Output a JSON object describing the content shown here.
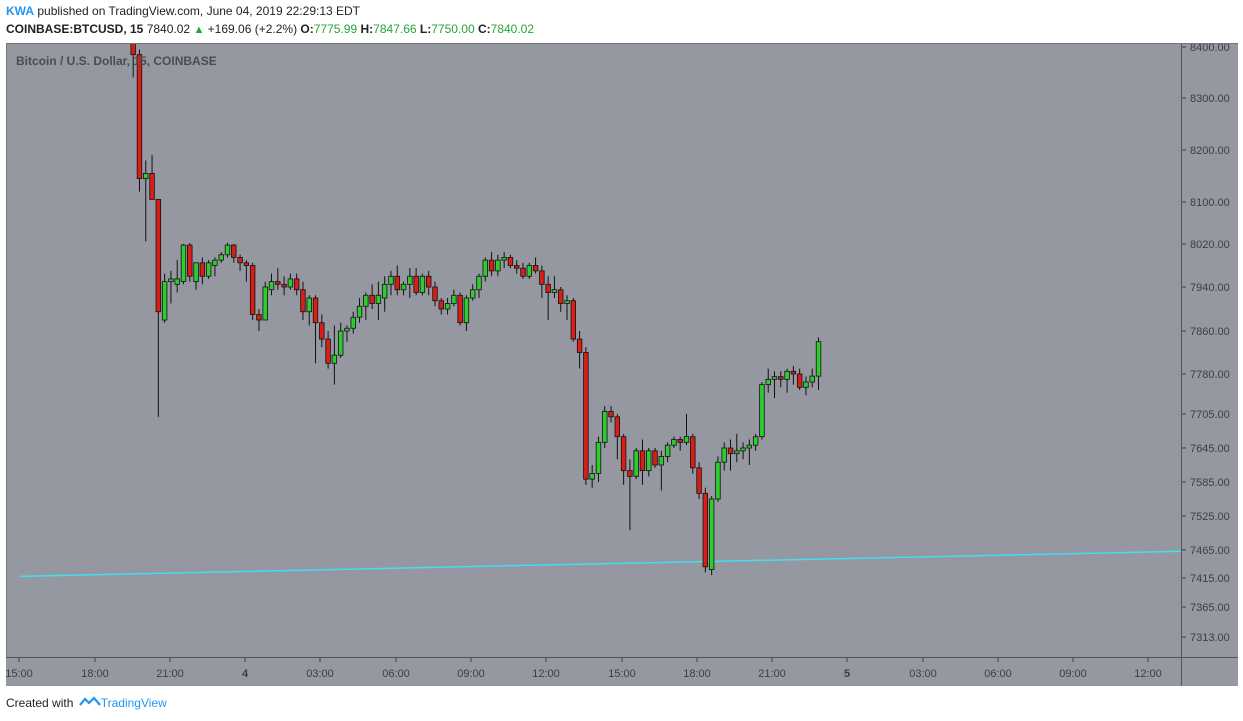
{
  "header": {
    "author": "KWA",
    "published": "published on TradingView.com, June 04, 2019 22:29:13 EDT",
    "symbol": "COINBASE:BTCUSD, 15",
    "price": "7840.02",
    "change": "+169.06 (+2.2%)",
    "o_label": "O:",
    "o_value": "7775.99",
    "h_label": "H:",
    "h_value": "7847.66",
    "l_label": "L:",
    "l_value": "7750.00",
    "c_label": "C:",
    "c_value": "7840.02"
  },
  "chart_title": "Bitcoin / U.S. Dollar, 15, COINBASE",
  "footer": {
    "created_with": "Created with",
    "brand": "TradingView"
  },
  "colors": {
    "background": "#9598a1",
    "up": "#2ecc2e",
    "down": "#d91e18",
    "trendline": "#40e0f0",
    "text": "#3c3e47"
  },
  "chart_data": {
    "type": "candlestick",
    "timeframe_minutes": 15,
    "y_tick_labels": [
      "8400.00",
      "8300.00",
      "8200.00",
      "8100.00",
      "8020.00",
      "7940.00",
      "7860.00",
      "7780.00",
      "7705.00",
      "7645.00",
      "7585.00",
      "7525.00",
      "7465.00",
      "7415.00",
      "7365.00",
      "7313.00"
    ],
    "x_tick_labels": [
      "15:00",
      "18:00",
      "21:00",
      "4",
      "03:00",
      "06:00",
      "09:00",
      "12:00",
      "15:00",
      "18:00",
      "21:00",
      "5",
      "03:00",
      "06:00",
      "09:00",
      "12:00"
    ],
    "trendline": {
      "start": {
        "time": "2019-06-03 15:00",
        "price": 7418
      },
      "end": {
        "time": "2019-06-05 13:30",
        "price": 7463
      }
    },
    "candles": [
      {
        "t": "2019-06-03 19:15",
        "o": 8420,
        "h": 8440,
        "l": 8340,
        "c": 8385
      },
      {
        "t": "2019-06-03 19:30",
        "o": 8385,
        "h": 8395,
        "l": 8120,
        "c": 8145
      },
      {
        "t": "2019-06-03 19:45",
        "o": 8145,
        "h": 8180,
        "l": 8025,
        "c": 8155
      },
      {
        "t": "2019-06-03 20:00",
        "o": 8155,
        "h": 8190,
        "l": 8110,
        "c": 8105
      },
      {
        "t": "2019-06-03 20:15",
        "o": 8105,
        "h": 8105,
        "l": 7700,
        "c": 7895
      },
      {
        "t": "2019-06-03 20:30",
        "o": 7880,
        "h": 7965,
        "l": 7875,
        "c": 7950
      },
      {
        "t": "2019-06-03 20:45",
        "o": 7950,
        "h": 7970,
        "l": 7910,
        "c": 7955
      },
      {
        "t": "2019-06-03 21:00",
        "o": 7945,
        "h": 7990,
        "l": 7930,
        "c": 7955
      },
      {
        "t": "2019-06-03 21:15",
        "o": 7950,
        "h": 8020,
        "l": 7945,
        "c": 8018
      },
      {
        "t": "2019-06-03 21:30",
        "o": 8018,
        "h": 8022,
        "l": 7950,
        "c": 7960
      },
      {
        "t": "2019-06-03 21:45",
        "o": 7950,
        "h": 7985,
        "l": 7935,
        "c": 7985
      },
      {
        "t": "2019-06-03 22:00",
        "o": 7985,
        "h": 7995,
        "l": 7945,
        "c": 7960
      },
      {
        "t": "2019-06-03 22:15",
        "o": 7960,
        "h": 7990,
        "l": 7955,
        "c": 7985
      },
      {
        "t": "2019-06-03 22:30",
        "o": 7980,
        "h": 7995,
        "l": 7960,
        "c": 7990
      },
      {
        "t": "2019-06-03 22:45",
        "o": 7990,
        "h": 8005,
        "l": 7985,
        "c": 8000
      },
      {
        "t": "2019-06-03 23:00",
        "o": 8000,
        "h": 8022,
        "l": 7995,
        "c": 8018
      },
      {
        "t": "2019-06-03 23:15",
        "o": 8018,
        "h": 8020,
        "l": 7985,
        "c": 7995
      },
      {
        "t": "2019-06-03 23:30",
        "o": 7995,
        "h": 8000,
        "l": 7970,
        "c": 7985
      },
      {
        "t": "2019-06-03 23:45",
        "o": 7985,
        "h": 7990,
        "l": 7950,
        "c": 7980
      },
      {
        "t": "2019-06-04 00:00",
        "o": 7980,
        "h": 7985,
        "l": 7880,
        "c": 7890
      },
      {
        "t": "2019-06-04 00:15",
        "o": 7890,
        "h": 7900,
        "l": 7860,
        "c": 7880
      },
      {
        "t": "2019-06-04 00:30",
        "o": 7880,
        "h": 7950,
        "l": 7880,
        "c": 7940
      },
      {
        "t": "2019-06-04 00:45",
        "o": 7935,
        "h": 7965,
        "l": 7925,
        "c": 7950
      },
      {
        "t": "2019-06-04 01:00",
        "o": 7950,
        "h": 7975,
        "l": 7935,
        "c": 7945
      },
      {
        "t": "2019-06-04 01:15",
        "o": 7945,
        "h": 7960,
        "l": 7925,
        "c": 7940
      },
      {
        "t": "2019-06-04 01:30",
        "o": 7940,
        "h": 7965,
        "l": 7935,
        "c": 7955
      },
      {
        "t": "2019-06-04 01:45",
        "o": 7955,
        "h": 7965,
        "l": 7925,
        "c": 7935
      },
      {
        "t": "2019-06-04 02:00",
        "o": 7935,
        "h": 7950,
        "l": 7880,
        "c": 7895
      },
      {
        "t": "2019-06-04 02:15",
        "o": 7895,
        "h": 7925,
        "l": 7870,
        "c": 7920
      },
      {
        "t": "2019-06-04 02:30",
        "o": 7920,
        "h": 7925,
        "l": 7800,
        "c": 7875
      },
      {
        "t": "2019-06-04 02:45",
        "o": 7875,
        "h": 7890,
        "l": 7830,
        "c": 7845
      },
      {
        "t": "2019-06-04 03:00",
        "o": 7845,
        "h": 7860,
        "l": 7790,
        "c": 7800
      },
      {
        "t": "2019-06-04 03:15",
        "o": 7800,
        "h": 7870,
        "l": 7760,
        "c": 7815
      },
      {
        "t": "2019-06-04 03:30",
        "o": 7815,
        "h": 7875,
        "l": 7810,
        "c": 7860
      },
      {
        "t": "2019-06-04 03:45",
        "o": 7860,
        "h": 7870,
        "l": 7840,
        "c": 7865
      },
      {
        "t": "2019-06-04 04:00",
        "o": 7865,
        "h": 7895,
        "l": 7855,
        "c": 7885
      },
      {
        "t": "2019-06-04 04:15",
        "o": 7885,
        "h": 7920,
        "l": 7875,
        "c": 7905
      },
      {
        "t": "2019-06-04 04:30",
        "o": 7905,
        "h": 7930,
        "l": 7880,
        "c": 7925
      },
      {
        "t": "2019-06-04 04:45",
        "o": 7925,
        "h": 7945,
        "l": 7900,
        "c": 7910
      },
      {
        "t": "2019-06-04 05:00",
        "o": 7910,
        "h": 7950,
        "l": 7880,
        "c": 7925
      },
      {
        "t": "2019-06-04 05:15",
        "o": 7920,
        "h": 7960,
        "l": 7895,
        "c": 7945
      },
      {
        "t": "2019-06-04 05:30",
        "o": 7945,
        "h": 7970,
        "l": 7925,
        "c": 7960
      },
      {
        "t": "2019-06-04 05:45",
        "o": 7960,
        "h": 7980,
        "l": 7925,
        "c": 7935
      },
      {
        "t": "2019-06-04 06:00",
        "o": 7935,
        "h": 7950,
        "l": 7925,
        "c": 7945
      },
      {
        "t": "2019-06-04 06:15",
        "o": 7945,
        "h": 7975,
        "l": 7920,
        "c": 7960
      },
      {
        "t": "2019-06-04 06:30",
        "o": 7960,
        "h": 7975,
        "l": 7925,
        "c": 7930
      },
      {
        "t": "2019-06-04 06:45",
        "o": 7930,
        "h": 7965,
        "l": 7925,
        "c": 7960
      },
      {
        "t": "2019-06-04 07:00",
        "o": 7960,
        "h": 7970,
        "l": 7925,
        "c": 7940
      },
      {
        "t": "2019-06-04 07:15",
        "o": 7940,
        "h": 7950,
        "l": 7905,
        "c": 7915
      },
      {
        "t": "2019-06-04 07:30",
        "o": 7915,
        "h": 7920,
        "l": 7890,
        "c": 7900
      },
      {
        "t": "2019-06-04 07:45",
        "o": 7900,
        "h": 7920,
        "l": 7890,
        "c": 7910
      },
      {
        "t": "2019-06-04 08:00",
        "o": 7910,
        "h": 7935,
        "l": 7905,
        "c": 7925
      },
      {
        "t": "2019-06-04 08:15",
        "o": 7925,
        "h": 7930,
        "l": 7870,
        "c": 7875
      },
      {
        "t": "2019-06-04 08:30",
        "o": 7875,
        "h": 7925,
        "l": 7860,
        "c": 7920
      },
      {
        "t": "2019-06-04 08:45",
        "o": 7920,
        "h": 7945,
        "l": 7915,
        "c": 7935
      },
      {
        "t": "2019-06-04 09:00",
        "o": 7935,
        "h": 7965,
        "l": 7920,
        "c": 7960
      },
      {
        "t": "2019-06-04 09:15",
        "o": 7960,
        "h": 7995,
        "l": 7950,
        "c": 7990
      },
      {
        "t": "2019-06-04 09:30",
        "o": 7990,
        "h": 8005,
        "l": 7960,
        "c": 7970
      },
      {
        "t": "2019-06-04 09:45",
        "o": 7970,
        "h": 8000,
        "l": 7960,
        "c": 7990
      },
      {
        "t": "2019-06-04 10:00",
        "o": 7990,
        "h": 8005,
        "l": 7975,
        "c": 7995
      },
      {
        "t": "2019-06-04 10:15",
        "o": 7995,
        "h": 8000,
        "l": 7975,
        "c": 7980
      },
      {
        "t": "2019-06-04 10:30",
        "o": 7980,
        "h": 7990,
        "l": 7965,
        "c": 7975
      },
      {
        "t": "2019-06-04 10:45",
        "o": 7975,
        "h": 7985,
        "l": 7955,
        "c": 7960
      },
      {
        "t": "2019-06-04 11:00",
        "o": 7960,
        "h": 7985,
        "l": 7955,
        "c": 7980
      },
      {
        "t": "2019-06-04 11:15",
        "o": 7980,
        "h": 7995,
        "l": 7965,
        "c": 7970
      },
      {
        "t": "2019-06-04 11:30",
        "o": 7970,
        "h": 7980,
        "l": 7920,
        "c": 7945
      },
      {
        "t": "2019-06-04 11:45",
        "o": 7945,
        "h": 7960,
        "l": 7880,
        "c": 7930
      },
      {
        "t": "2019-06-04 12:00",
        "o": 7930,
        "h": 7960,
        "l": 7920,
        "c": 7935
      },
      {
        "t": "2019-06-04 12:15",
        "o": 7935,
        "h": 7940,
        "l": 7895,
        "c": 7910
      },
      {
        "t": "2019-06-04 12:30",
        "o": 7910,
        "h": 7925,
        "l": 7880,
        "c": 7915
      },
      {
        "t": "2019-06-04 12:45",
        "o": 7915,
        "h": 7920,
        "l": 7840,
        "c": 7845
      },
      {
        "t": "2019-06-04 13:00",
        "o": 7845,
        "h": 7860,
        "l": 7790,
        "c": 7820
      },
      {
        "t": "2019-06-04 13:15",
        "o": 7820,
        "h": 7830,
        "l": 7580,
        "c": 7590
      },
      {
        "t": "2019-06-04 13:30",
        "o": 7590,
        "h": 7615,
        "l": 7575,
        "c": 7600
      },
      {
        "t": "2019-06-04 13:45",
        "o": 7600,
        "h": 7665,
        "l": 7585,
        "c": 7655
      },
      {
        "t": "2019-06-04 14:00",
        "o": 7655,
        "h": 7720,
        "l": 7645,
        "c": 7710
      },
      {
        "t": "2019-06-04 14:15",
        "o": 7710,
        "h": 7720,
        "l": 7690,
        "c": 7700
      },
      {
        "t": "2019-06-04 14:30",
        "o": 7700,
        "h": 7705,
        "l": 7625,
        "c": 7665
      },
      {
        "t": "2019-06-04 14:45",
        "o": 7665,
        "h": 7670,
        "l": 7580,
        "c": 7605
      },
      {
        "t": "2019-06-04 15:00",
        "o": 7605,
        "h": 7625,
        "l": 7500,
        "c": 7595
      },
      {
        "t": "2019-06-04 15:15",
        "o": 7595,
        "h": 7645,
        "l": 7590,
        "c": 7640
      },
      {
        "t": "2019-06-04 15:30",
        "o": 7640,
        "h": 7660,
        "l": 7580,
        "c": 7605
      },
      {
        "t": "2019-06-04 15:45",
        "o": 7605,
        "h": 7645,
        "l": 7595,
        "c": 7640
      },
      {
        "t": "2019-06-04 16:00",
        "o": 7640,
        "h": 7645,
        "l": 7610,
        "c": 7615
      },
      {
        "t": "2019-06-04 16:15",
        "o": 7615,
        "h": 7640,
        "l": 7570,
        "c": 7630
      },
      {
        "t": "2019-06-04 16:30",
        "o": 7630,
        "h": 7655,
        "l": 7620,
        "c": 7650
      },
      {
        "t": "2019-06-04 16:45",
        "o": 7650,
        "h": 7665,
        "l": 7645,
        "c": 7660
      },
      {
        "t": "2019-06-04 17:00",
        "o": 7660,
        "h": 7665,
        "l": 7640,
        "c": 7655
      },
      {
        "t": "2019-06-04 17:15",
        "o": 7655,
        "h": 7705,
        "l": 7650,
        "c": 7665
      },
      {
        "t": "2019-06-04 17:30",
        "o": 7665,
        "h": 7670,
        "l": 7600,
        "c": 7610
      },
      {
        "t": "2019-06-04 17:45",
        "o": 7610,
        "h": 7620,
        "l": 7555,
        "c": 7565
      },
      {
        "t": "2019-06-04 18:00",
        "o": 7565,
        "h": 7575,
        "l": 7425,
        "c": 7435
      },
      {
        "t": "2019-06-04 18:15",
        "o": 7430,
        "h": 7560,
        "l": 7420,
        "c": 7555
      },
      {
        "t": "2019-06-04 18:30",
        "o": 7555,
        "h": 7630,
        "l": 7550,
        "c": 7620
      },
      {
        "t": "2019-06-04 18:45",
        "o": 7620,
        "h": 7655,
        "l": 7605,
        "c": 7645
      },
      {
        "t": "2019-06-04 19:00",
        "o": 7645,
        "h": 7660,
        "l": 7605,
        "c": 7635
      },
      {
        "t": "2019-06-04 19:15",
        "o": 7635,
        "h": 7670,
        "l": 7620,
        "c": 7640
      },
      {
        "t": "2019-06-04 19:30",
        "o": 7640,
        "h": 7655,
        "l": 7625,
        "c": 7645
      },
      {
        "t": "2019-06-04 19:45",
        "o": 7645,
        "h": 7660,
        "l": 7615,
        "c": 7650
      },
      {
        "t": "2019-06-04 20:00",
        "o": 7650,
        "h": 7670,
        "l": 7640,
        "c": 7665
      },
      {
        "t": "2019-06-04 20:15",
        "o": 7665,
        "h": 7765,
        "l": 7660,
        "c": 7760
      },
      {
        "t": "2019-06-04 20:30",
        "o": 7760,
        "h": 7790,
        "l": 7745,
        "c": 7770
      },
      {
        "t": "2019-06-04 20:45",
        "o": 7770,
        "h": 7785,
        "l": 7735,
        "c": 7775
      },
      {
        "t": "2019-06-04 21:00",
        "o": 7775,
        "h": 7785,
        "l": 7755,
        "c": 7770
      },
      {
        "t": "2019-06-04 21:15",
        "o": 7770,
        "h": 7790,
        "l": 7745,
        "c": 7785
      },
      {
        "t": "2019-06-04 21:30",
        "o": 7785,
        "h": 7795,
        "l": 7760,
        "c": 7780
      },
      {
        "t": "2019-06-04 21:45",
        "o": 7780,
        "h": 7790,
        "l": 7750,
        "c": 7755
      },
      {
        "t": "2019-06-04 22:00",
        "o": 7755,
        "h": 7775,
        "l": 7740,
        "c": 7765
      },
      {
        "t": "2019-06-04 22:15",
        "o": 7765,
        "h": 7790,
        "l": 7755,
        "c": 7776
      },
      {
        "t": "2019-06-04 22:30",
        "o": 7776,
        "h": 7848,
        "l": 7750,
        "c": 7840
      }
    ]
  }
}
